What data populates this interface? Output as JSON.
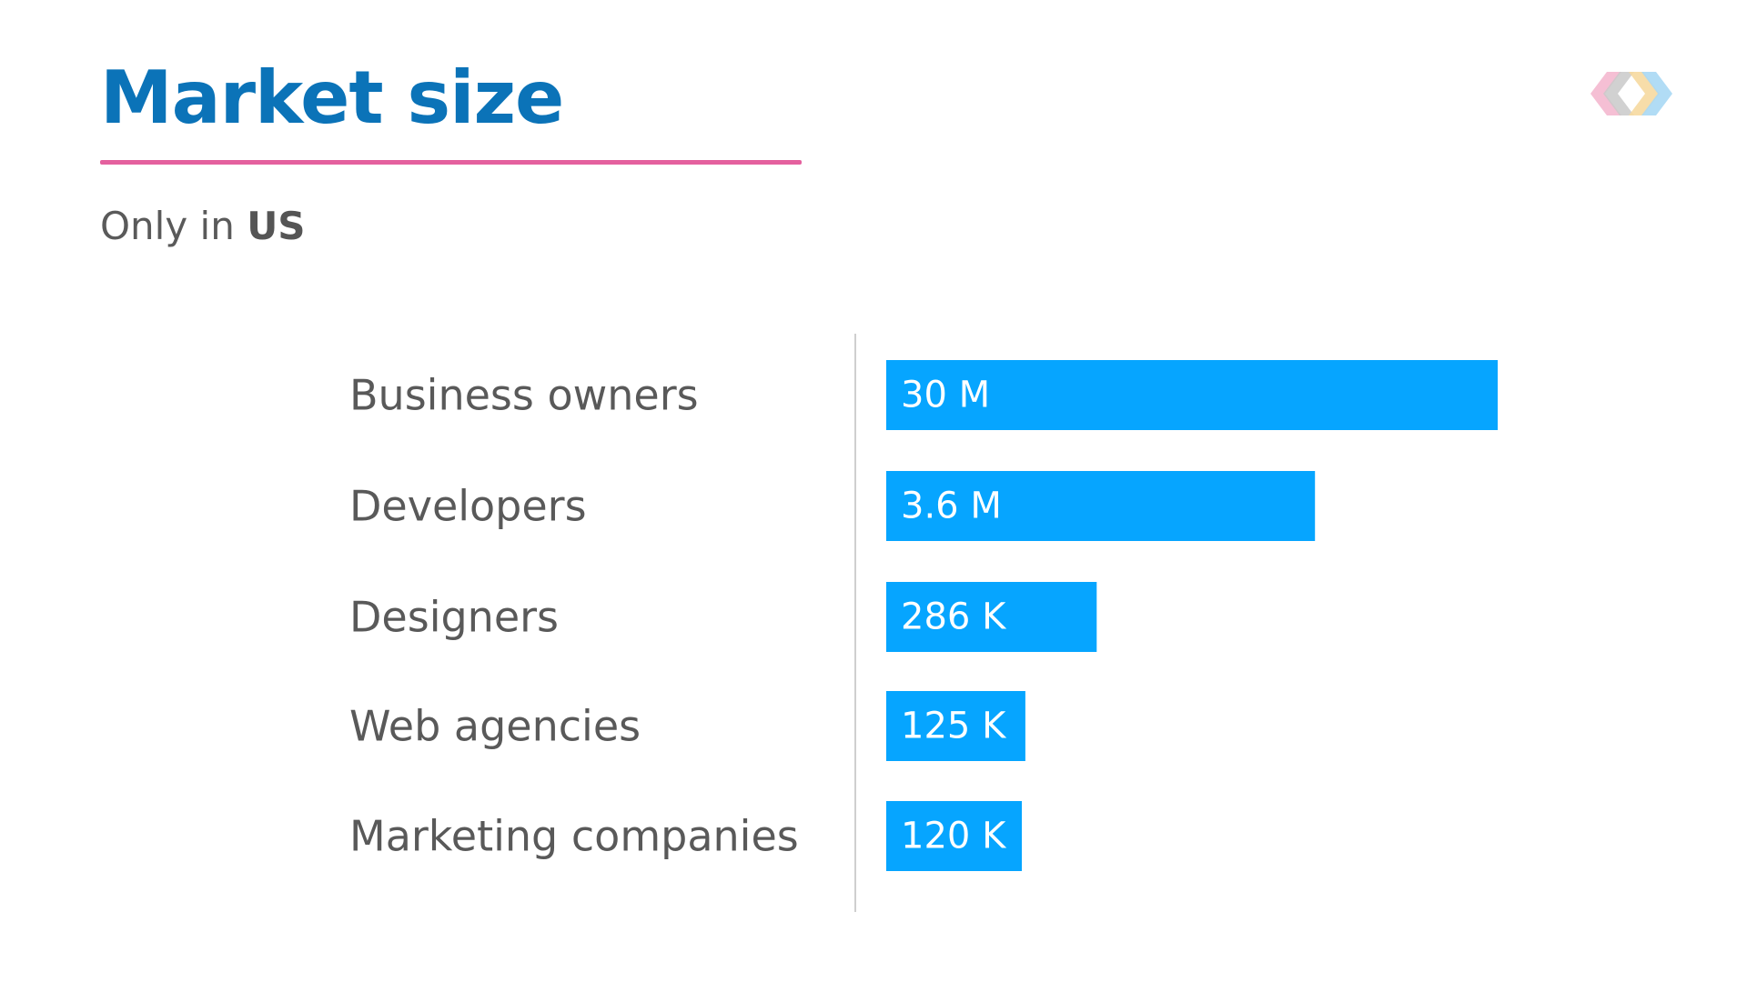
{
  "slide": {
    "title": "Market size",
    "subtitle_prefix": "Only in",
    "subtitle_emphasis": "US",
    "colors": {
      "title": "#0b73b8",
      "rule": "#e4609e",
      "bar": "#06a5ff",
      "text": "#595959"
    },
    "logo_icon": "diamond-chevrons-logo-icon"
  },
  "chart_data": {
    "type": "bar",
    "orientation": "horizontal",
    "categories": [
      "Business owners",
      "Developers",
      "Designers",
      "Web agencies",
      "Marketing companies"
    ],
    "values": [
      30000000,
      3600000,
      286000,
      125000,
      120000
    ],
    "value_labels": [
      "30 M",
      "3.6 M",
      "286 K",
      "125 K",
      "120 K"
    ],
    "scale": "log",
    "grid": false,
    "legend": "none",
    "bar_color": "#06a5ff"
  }
}
